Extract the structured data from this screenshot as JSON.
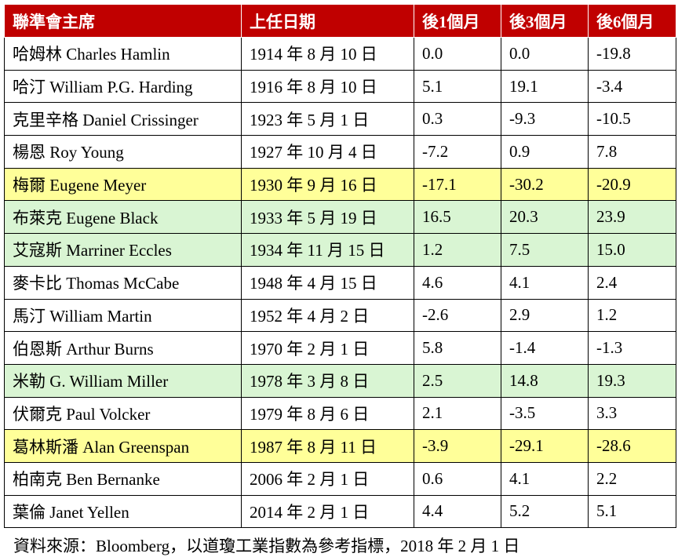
{
  "table": {
    "header": [
      "聯準會主席",
      "上任日期",
      "後1個月",
      "後3個月",
      "後6個月"
    ],
    "header_fill": "#c00000",
    "rows": [
      {
        "cells": [
          "哈姆林 Charles Hamlin",
          "1914 年 8 月 10 日",
          "0.0",
          "0.0",
          "-19.8"
        ],
        "fill": "#ffffff"
      },
      {
        "cells": [
          "哈汀 William P.G. Harding",
          "1916 年 8 月 10 日",
          "5.1",
          "19.1",
          "-3.4"
        ],
        "fill": "#ffffff"
      },
      {
        "cells": [
          "克里辛格 Daniel Crissinger",
          "1923 年 5 月 1 日",
          "0.3",
          "-9.3",
          "-10.5"
        ],
        "fill": "#ffffff"
      },
      {
        "cells": [
          "楊恩 Roy Young",
          "1927 年 10 月 4 日",
          "-7.2",
          "0.9",
          "7.8"
        ],
        "fill": "#ffffff"
      },
      {
        "cells": [
          "梅爾 Eugene Meyer",
          "1930 年 9 月 16 日",
          "-17.1",
          "-30.2",
          "-20.9"
        ],
        "fill": "#ffff99"
      },
      {
        "cells": [
          "布萊克 Eugene Black",
          "1933 年 5 月 19 日",
          "16.5",
          "20.3",
          "23.9"
        ],
        "fill": "#d9f5d3"
      },
      {
        "cells": [
          "艾寇斯 Marriner Eccles",
          "1934 年 11 月 15 日",
          "1.2",
          "7.5",
          "15.0"
        ],
        "fill": "#d9f5d3"
      },
      {
        "cells": [
          "麥卡比 Thomas McCabe",
          "1948 年 4 月 15 日",
          "4.6",
          "4.1",
          "2.4"
        ],
        "fill": "#ffffff"
      },
      {
        "cells": [
          "馬汀 William Martin",
          "1952 年 4 月 2 日",
          "-2.6",
          "2.9",
          "1.2"
        ],
        "fill": "#ffffff"
      },
      {
        "cells": [
          "伯恩斯 Arthur Burns",
          "1970 年 2 月 1 日",
          "5.8",
          "-1.4",
          "-1.3"
        ],
        "fill": "#ffffff"
      },
      {
        "cells": [
          "米勒 G. William Miller",
          "1978 年 3 月 8 日",
          "2.5",
          "14.8",
          "19.3"
        ],
        "fill": "#d9f5d3"
      },
      {
        "cells": [
          "伏爾克 Paul Volcker",
          "1979 年 8 月 6 日",
          "2.1",
          "-3.5",
          "3.3"
        ],
        "fill": "#ffffff"
      },
      {
        "cells": [
          "葛林斯潘 Alan Greenspan",
          "1987 年 8 月 11 日",
          "-3.9",
          "-29.1",
          "-28.6"
        ],
        "fill": "#ffff99"
      },
      {
        "cells": [
          "柏南克 Ben Bernanke",
          "2006 年 2 月 1 日",
          "0.6",
          "4.1",
          "2.2"
        ],
        "fill": "#ffffff"
      },
      {
        "cells": [
          "葉倫 Janet Yellen",
          "2014 年 2 月 1 日",
          "4.4",
          "5.2",
          "5.1"
        ],
        "fill": "#ffffff"
      }
    ]
  },
  "footer": {
    "source": "資料來源：Bloomberg，以道瓊工業指數為參考指標，2018 年 2 月 1 日"
  }
}
